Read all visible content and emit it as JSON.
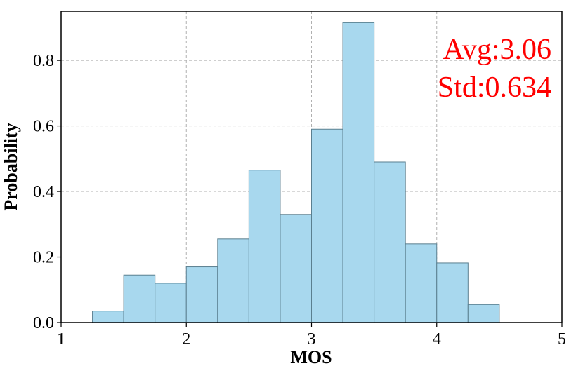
{
  "chart_data": {
    "type": "bar",
    "title": "",
    "xlabel": "MOS",
    "ylabel": "Probability",
    "xlim": [
      1,
      5
    ],
    "ylim": [
      0,
      0.95
    ],
    "grid": true,
    "x_ticks": [
      {
        "value": 1,
        "label": "1"
      },
      {
        "value": 2,
        "label": "2"
      },
      {
        "value": 3,
        "label": "3"
      },
      {
        "value": 4,
        "label": "4"
      },
      {
        "value": 5,
        "label": "5"
      }
    ],
    "y_ticks": [
      {
        "value": 0.0,
        "label": "0.0"
      },
      {
        "value": 0.2,
        "label": "0.2"
      },
      {
        "value": 0.4,
        "label": "0.4"
      },
      {
        "value": 0.6,
        "label": "0.6"
      },
      {
        "value": 0.8,
        "label": "0.8"
      }
    ],
    "bin_edges": [
      1.25,
      1.5,
      1.75,
      2.0,
      2.25,
      2.5,
      2.75,
      3.0,
      3.25,
      3.5,
      3.75,
      4.0,
      4.25,
      4.5
    ],
    "values": [
      0.035,
      0.145,
      0.12,
      0.17,
      0.255,
      0.465,
      0.33,
      0.59,
      0.915,
      0.49,
      0.24,
      0.182,
      0.055
    ],
    "bar_color": "#a8d8ee",
    "annotations": [
      {
        "text": "Avg:3.06",
        "color": "#ff0000",
        "position": "top-right"
      },
      {
        "text": "Std:0.634",
        "color": "#ff0000",
        "position": "top-right"
      }
    ]
  }
}
